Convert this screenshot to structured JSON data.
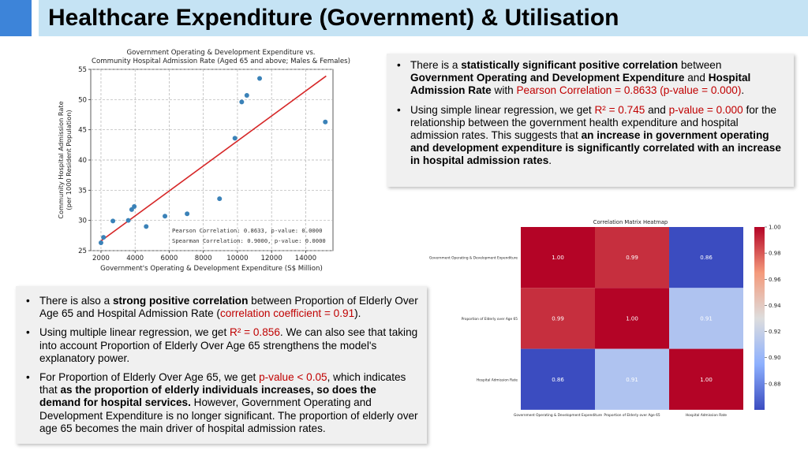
{
  "header": {
    "title": "Healthcare Expenditure (Government) & Utilisation"
  },
  "colors": {
    "accent_bar": "#3d84d9",
    "title_band": "#c5e3f4",
    "point": "#3b82b8",
    "fit_line": "#d62728",
    "highlight": "#c00000"
  },
  "top_panel": {
    "bullet1": {
      "t1": "There is a ",
      "b1": "statistically significant positive correlation",
      "t2": " between ",
      "b2": "Government Operating and Development Expenditure",
      "t3": " and ",
      "b3": "Hospital Admission Rate",
      "t4": " with ",
      "r1": "Pearson Correlation = 0.8633 (p-value = 0.000)",
      "t5": "."
    },
    "bullet2": {
      "t1": "Using simple linear regression, we get ",
      "r1": "R² = 0.745",
      "t2": " and ",
      "r2": "p-value  = 0.000",
      "t3": " for the relationship between the government health expenditure and hospital admission rates. This suggests that ",
      "b1": "an increase in government operating and development expenditure is significantly correlated with an increase in hospital admission rates",
      "t4": "."
    }
  },
  "bottom_panel": {
    "bullet1": {
      "t1": "There is also a ",
      "b1": "strong positive correlation",
      "t2": " between Proportion of Elderly Over Age 65 and Hospital Admission Rate (",
      "r1": "correlation coefficient = 0.91",
      "t3": ")."
    },
    "bullet2": {
      "t1": "Using multiple linear regression, we get ",
      "r1": "R² = 0.856",
      "t2": ". We can also see that taking into account Proportion of Elderly Over Age 65 strengthens the model's explanatory power."
    },
    "bullet3": {
      "t1": "For Proportion of Elderly Over Age 65, we get ",
      "r1": "p-value < 0.05",
      "t2": ", which indicates that ",
      "b1": "as the proportion of elderly individuals increases, so does the demand for hospital services.",
      "t3": " However, Government Operating and Development Expenditure is no longer significant. The proportion of elderly over age 65 becomes the main driver of hospital admission rates."
    }
  },
  "chart_data": [
    {
      "type": "scatter",
      "title": "Government Operating & Development Expenditure vs.",
      "subtitle": "Community Hospital Admission Rate (Aged 65 and above; Males & Females)",
      "xlabel": "Government's Operating & Development Expenditure (S$ Million)",
      "ylabel": "Community Hospital Admission Rate",
      "ylabel2": "(per 1000 Resident Population)",
      "xlim": [
        1400,
        15600
      ],
      "ylim": [
        25,
        55
      ],
      "xticks": [
        2000,
        4000,
        6000,
        8000,
        10000,
        12000,
        14000
      ],
      "yticks": [
        25,
        30,
        35,
        40,
        45,
        50,
        55
      ],
      "grid": true,
      "points": [
        {
          "x": 2000,
          "y": 26.3
        },
        {
          "x": 2150,
          "y": 27.2
        },
        {
          "x": 2700,
          "y": 29.9
        },
        {
          "x": 3600,
          "y": 30.0
        },
        {
          "x": 3800,
          "y": 31.8
        },
        {
          "x": 3950,
          "y": 32.3
        },
        {
          "x": 4650,
          "y": 29.0
        },
        {
          "x": 5750,
          "y": 30.7
        },
        {
          "x": 7050,
          "y": 31.1
        },
        {
          "x": 8950,
          "y": 33.6
        },
        {
          "x": 9850,
          "y": 43.6
        },
        {
          "x": 10250,
          "y": 49.6
        },
        {
          "x": 10550,
          "y": 50.7
        },
        {
          "x": 11300,
          "y": 53.5
        },
        {
          "x": 15150,
          "y": 46.3
        }
      ],
      "fit_line": {
        "x": [
          1900,
          15200
        ],
        "y": [
          26.4,
          53.9
        ]
      },
      "annotations": [
        "Pearson Correlation: 0.8633, p-value: 0.0000",
        "Spearman Correlation: 0.9000, p-value: 0.0000"
      ]
    },
    {
      "type": "heatmap",
      "title": "Correlation Matrix Heatmap",
      "rows": [
        "Government Operating & Development Expenditure",
        "Proportion of Elderly over Age 65",
        "Hospital Admission Rate"
      ],
      "columns": [
        "Government Operating & Development Expenditure",
        "Proportion of Elderly over Age 65",
        "Hospital Admission Rate"
      ],
      "values": [
        [
          1.0,
          0.99,
          0.86
        ],
        [
          0.99,
          1.0,
          0.91
        ],
        [
          0.86,
          0.91,
          1.0
        ]
      ],
      "cell_labels": [
        [
          "1.00",
          "0.99",
          "0.86"
        ],
        [
          "0.99",
          "1.00",
          "0.91"
        ],
        [
          "0.86",
          "0.91",
          "1.00"
        ]
      ],
      "colormap": "coolwarm",
      "vmin": 0.86,
      "vmax": 1.0,
      "colorbar_ticks": [
        "1.00",
        "0.98",
        "0.96",
        "0.94",
        "0.92",
        "0.90",
        "0.88"
      ],
      "colorbar_tick_values": [
        1.0,
        0.98,
        0.96,
        0.94,
        0.92,
        0.9,
        0.88
      ]
    }
  ]
}
